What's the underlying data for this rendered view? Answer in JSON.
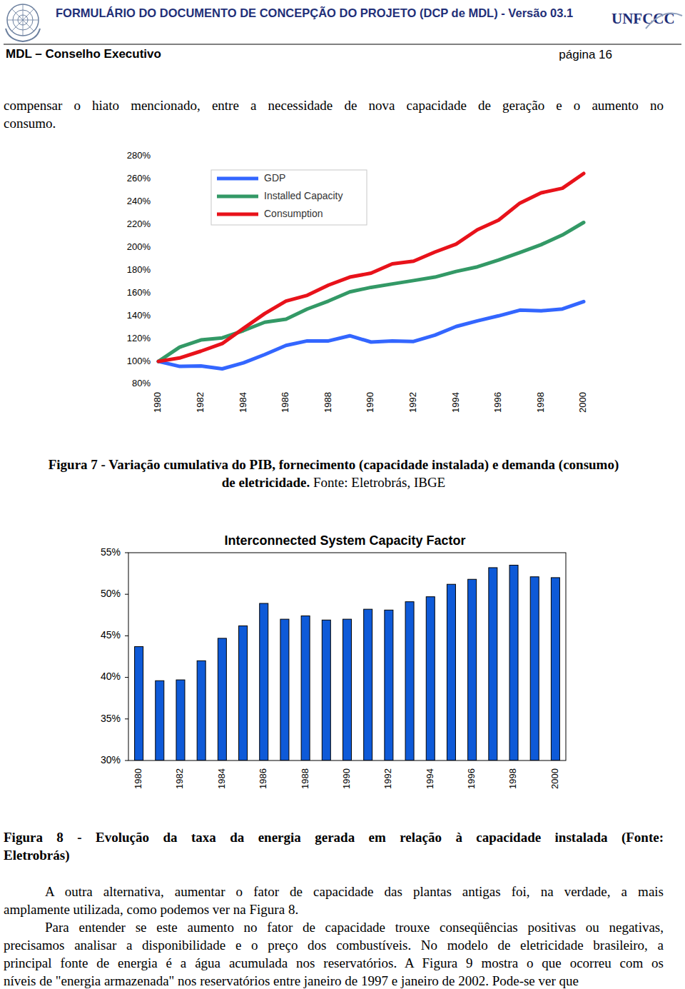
{
  "header": {
    "title": "FORMULÁRIO DO DOCUMENTO DE CONCEPÇÃO DO PROJETO (DCP de MDL) - Versão 03.1",
    "logo_text": "UNFCCC",
    "section": "MDL – Conselho Executivo",
    "page": "página 16"
  },
  "paragraphs": [
    {
      "lines": [
        "compensar o hiato mencionado, entre a necessidade de nova capacidade de geração e o aumento no",
        "consumo."
      ]
    },
    {
      "lines": [
        "A outra alternativa, aumentar o fator de capacidade das plantas antigas foi, na verdade, a mais",
        "amplamente utilizada, como podemos ver na Figura 8."
      ]
    },
    {
      "lines": [
        "Para entender se este aumento no fator de capacidade trouxe conseqüências positivas ou negativas,",
        "precisamos analisar a disponibilidade e o preço dos combustíveis. No modelo de eletricidade brasileiro, a",
        "principal fonte de energia é a água acumulada nos reservatórios. A Figura 9 mostra o que ocorreu com os",
        "níveis de \"energia armazenada\" nos reservatórios entre janeiro de 1997 e janeiro de 2002. Pode-se ver que"
      ]
    }
  ],
  "figures": [
    {
      "caption_lines": [
        "Figura 7 - Variação cumulativa do PIB, fornecimento (capacidade instalada) e demanda (consumo)",
        "de eletricidade."
      ],
      "source": "Fonte: Eletrobrás, IBGE"
    },
    {
      "caption_lines": [
        "Figura 8 - Evolução da taxa da energia gerada em relação à capacidade instalada (Fonte:",
        "Eletrobrás)"
      ]
    }
  ],
  "chart_data": [
    {
      "type": "line",
      "x": [
        1980,
        1981,
        1982,
        1983,
        1984,
        1985,
        1986,
        1987,
        1988,
        1989,
        1990,
        1991,
        1992,
        1993,
        1994,
        1995,
        1996,
        1997,
        1998,
        1999,
        2000
      ],
      "xlim": [
        1980,
        2000
      ],
      "xticks": [
        1980,
        1982,
        1984,
        1986,
        1988,
        1990,
        1992,
        1994,
        1996,
        1998,
        2000
      ],
      "ylim": [
        80,
        280
      ],
      "yticks": [
        {
          "value": 80,
          "label": "80%"
        },
        {
          "value": 100,
          "label": "100%"
        },
        {
          "value": 120,
          "label": "120%"
        },
        {
          "value": 140,
          "label": "140%"
        },
        {
          "value": 160,
          "label": "160%"
        },
        {
          "value": 180,
          "label": "180%"
        },
        {
          "value": 200,
          "label": "200%"
        },
        {
          "value": 220,
          "label": "220%"
        },
        {
          "value": 240,
          "label": "240%"
        },
        {
          "value": 260,
          "label": "260%"
        },
        {
          "value": 280,
          "label": "280%"
        }
      ],
      "grid": false,
      "legend": "top-left",
      "series": [
        {
          "name": "GDP",
          "color": "#3366ff",
          "values": [
            100,
            95.6,
            96,
            93.5,
            98.7,
            106,
            114,
            118,
            118,
            122.5,
            117,
            118,
            117.5,
            123,
            130.6,
            135.6,
            140,
            145,
            144.4,
            146,
            152.5
          ]
        },
        {
          "name": "Installed Capacity",
          "color": "#339966",
          "values": [
            100,
            112.5,
            118.8,
            120.6,
            127,
            134.4,
            137,
            146,
            153,
            161,
            165,
            168,
            171,
            174,
            179,
            183,
            189,
            195.6,
            202.5,
            211,
            222
          ]
        },
        {
          "name": "Consumption",
          "color": "#e8121a",
          "values": [
            100,
            103,
            109,
            115.6,
            129,
            142,
            153,
            158,
            167,
            174,
            177.5,
            185.6,
            188,
            196,
            203,
            215.6,
            224,
            239,
            248,
            252,
            265
          ]
        }
      ]
    },
    {
      "type": "bar",
      "title": "Interconnected System Capacity Factor",
      "categories": [
        "1980",
        null,
        "1982",
        null,
        "1984",
        null,
        "1986",
        null,
        "1988",
        null,
        "1990",
        null,
        "1992",
        null,
        "1994",
        null,
        "1996",
        null,
        "1998",
        null,
        "2000"
      ],
      "values": [
        43.7,
        39.6,
        39.7,
        42.0,
        44.7,
        46.2,
        48.9,
        47.0,
        47.4,
        46.9,
        47.0,
        48.2,
        48.1,
        49.1,
        49.7,
        51.2,
        51.8,
        53.2,
        53.5,
        52.1,
        52.0
      ],
      "color": "#0e5ad8",
      "ylim": [
        30,
        55
      ],
      "yticks": [
        {
          "value": 30,
          "label": "30%"
        },
        {
          "value": 35,
          "label": "35%"
        },
        {
          "value": 40,
          "label": "40%"
        },
        {
          "value": 45,
          "label": "45%"
        },
        {
          "value": 50,
          "label": "50%"
        },
        {
          "value": 55,
          "label": "55%"
        }
      ],
      "grid": false
    }
  ]
}
